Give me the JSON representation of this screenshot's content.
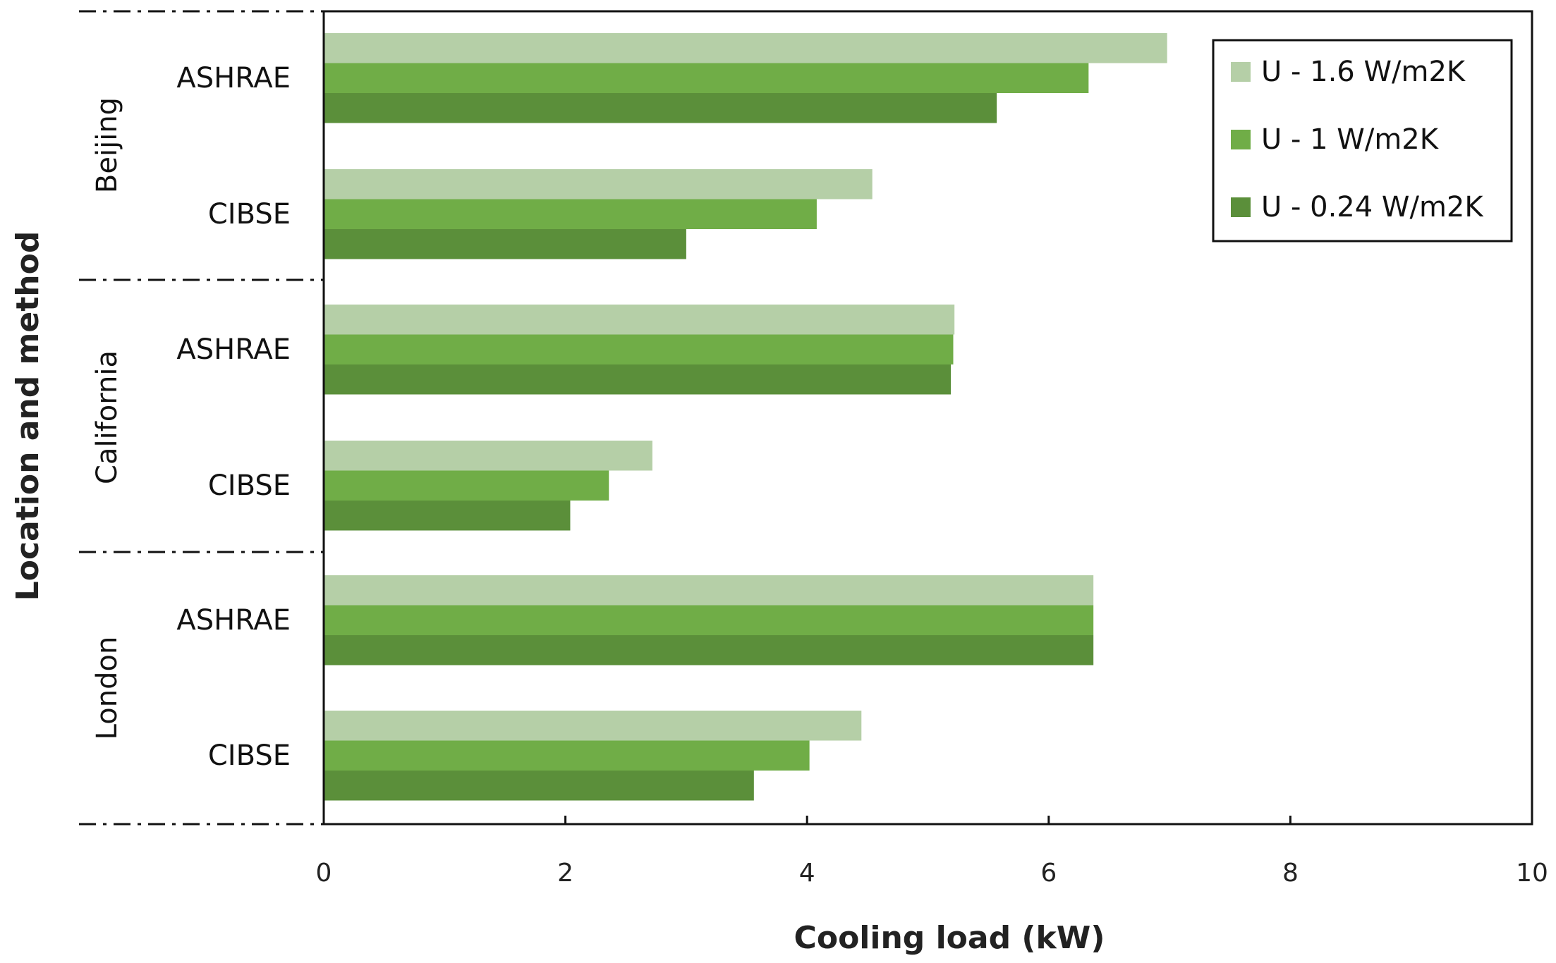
{
  "chart_data": {
    "type": "bar",
    "orientation": "horizontal",
    "title": "",
    "xlabel": "Cooling load (kW)",
    "ylabel": "Location and method",
    "xlim": [
      0,
      10
    ],
    "xticks": [
      "0",
      "2",
      "4",
      "6",
      "8",
      "10"
    ],
    "grid": false,
    "legend_position": "top-right",
    "groups": [
      "Beijing",
      "California",
      "London"
    ],
    "methods": [
      "ASHRAE",
      "CIBSE"
    ],
    "categories": [
      {
        "group": "Beijing",
        "method": "ASHRAE"
      },
      {
        "group": "Beijing",
        "method": "CIBSE"
      },
      {
        "group": "California",
        "method": "ASHRAE"
      },
      {
        "group": "California",
        "method": "CIBSE"
      },
      {
        "group": "London",
        "method": "ASHRAE"
      },
      {
        "group": "London",
        "method": "CIBSE"
      }
    ],
    "series": [
      {
        "name": "U - 1.6 W/m2K",
        "color": "#b5cfa7",
        "values": [
          6.98,
          4.54,
          5.22,
          2.72,
          6.37,
          4.45
        ]
      },
      {
        "name": "U - 1 W/m2K",
        "color": "#70ad47",
        "values": [
          6.33,
          4.08,
          5.21,
          2.36,
          6.37,
          4.02
        ]
      },
      {
        "name": "U - 0.24 W/m2K",
        "color": "#5b8f3a",
        "values": [
          5.57,
          3.0,
          5.19,
          2.04,
          6.37,
          3.56
        ]
      }
    ]
  }
}
